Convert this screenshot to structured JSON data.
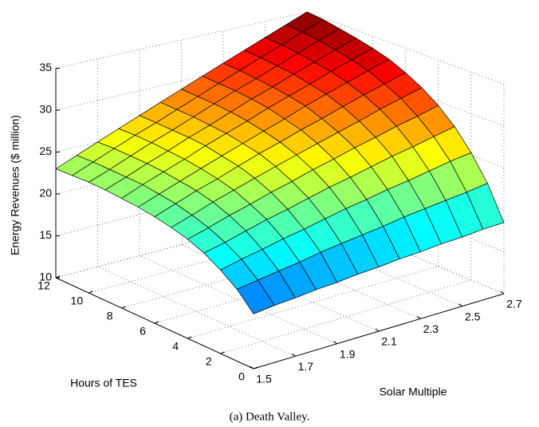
{
  "chart_data": {
    "type": "surface",
    "xlabel": "Solar Multiple",
    "ylabel": "Hours of TES",
    "zlabel": "Energy Revenues ($ million)",
    "caption": "(a) Death Valley.",
    "colormap": "jet",
    "grid": true,
    "x": [
      1.5,
      1.6,
      1.7,
      1.8,
      1.9,
      2.0,
      2.1,
      2.2,
      2.3,
      2.4,
      2.5,
      2.6,
      2.7
    ],
    "y": [
      0,
      1,
      2,
      3,
      4,
      5,
      6,
      7,
      8,
      9,
      10,
      11,
      12
    ],
    "z": [
      [
        15.5,
        15.8,
        16.0,
        16.3,
        16.5,
        16.8,
        17.0,
        17.3,
        17.5,
        17.8,
        18.0,
        18.3,
        18.5
      ],
      [
        17.3,
        17.7,
        18.1,
        18.5,
        19.0,
        19.4,
        19.8,
        20.2,
        20.7,
        21.1,
        21.5,
        21.9,
        22.4
      ],
      [
        18.6,
        19.2,
        19.7,
        20.3,
        20.8,
        21.4,
        22.0,
        22.5,
        23.1,
        23.6,
        24.2,
        24.8,
        25.3
      ],
      [
        19.7,
        20.3,
        21.0,
        21.7,
        22.3,
        23.0,
        23.7,
        24.3,
        25.0,
        25.7,
        26.3,
        27.0,
        27.7
      ],
      [
        20.5,
        21.2,
        22.0,
        22.7,
        23.5,
        24.2,
        25.0,
        25.7,
        26.5,
        27.2,
        28.0,
        28.7,
        29.5
      ],
      [
        21.1,
        21.9,
        22.8,
        23.6,
        24.4,
        25.2,
        26.0,
        26.8,
        27.6,
        28.4,
        29.3,
        30.1,
        30.9
      ],
      [
        21.6,
        22.5,
        23.4,
        24.2,
        25.1,
        26.0,
        26.8,
        27.7,
        28.5,
        29.4,
        30.3,
        31.1,
        32.0
      ],
      [
        22.0,
        22.9,
        23.8,
        24.7,
        25.6,
        26.5,
        27.4,
        28.3,
        29.3,
        30.2,
        31.1,
        32.0,
        32.9
      ],
      [
        22.3,
        23.3,
        24.2,
        25.1,
        26.1,
        27.0,
        27.9,
        28.9,
        29.8,
        30.7,
        31.7,
        32.6,
        33.5
      ],
      [
        22.6,
        23.5,
        24.5,
        25.4,
        26.4,
        27.3,
        28.3,
        29.3,
        30.2,
        31.2,
        32.1,
        33.1,
        34.0
      ],
      [
        22.8,
        23.7,
        24.7,
        25.7,
        26.6,
        27.6,
        28.6,
        29.6,
        30.5,
        31.5,
        32.5,
        33.5,
        34.4
      ],
      [
        22.9,
        23.9,
        24.9,
        25.9,
        26.8,
        27.8,
        28.8,
        29.8,
        30.8,
        31.8,
        32.8,
        33.8,
        34.8
      ],
      [
        23,
        24,
        25,
        26,
        27,
        28,
        29,
        30,
        31,
        32,
        33,
        34,
        35
      ]
    ],
    "xlim": [
      1.5,
      2.7
    ],
    "xticks": [
      1.5,
      1.7,
      1.9,
      2.1,
      2.3,
      2.5,
      2.7
    ],
    "ylim": [
      0,
      12
    ],
    "yticks": [
      0,
      2,
      4,
      6,
      8,
      10,
      12
    ],
    "zlim": [
      10,
      35
    ],
    "zticks": [
      10,
      15,
      20,
      25,
      30,
      35
    ]
  }
}
